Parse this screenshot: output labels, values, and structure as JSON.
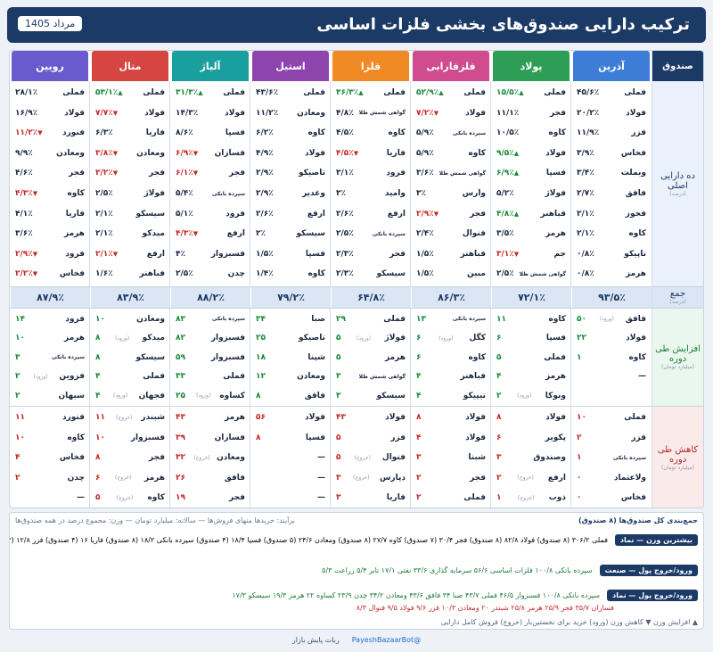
{
  "header": {
    "title": "ترکیب دارایی صندوق‌های بخشی فلزات اساسی",
    "date": "مرداد 1405"
  },
  "row_labels": {
    "fund": "صندوق",
    "main": "ده دارایی اصلی",
    "main_sub": "(درصد)",
    "total": "جمع",
    "total_sub": "(درصد)",
    "inc": "افزایش طی دوره",
    "inc_sub": "(میلیارد تومان)",
    "dec": "کاهش طی دوره",
    "dec_sub": "(میلیارد تومان)"
  },
  "funds": [
    {
      "name": "آذرین",
      "color": "#3d7dd8",
      "total": "۹۳/۵٪",
      "top": [
        [
          "فملی",
          "۴۵/۶٪",
          ""
        ],
        [
          "فولاد",
          "۲۰/۲٪",
          ""
        ],
        [
          "فزر",
          "۱۱/۹٪",
          ""
        ],
        [
          "فخاس",
          "۳/۹٪",
          ""
        ],
        [
          "وبملت",
          "۳/۴٪",
          ""
        ],
        [
          "فافق",
          "۲/۷٪",
          ""
        ],
        [
          "فخوز",
          "۲/۱٪",
          ""
        ],
        [
          "کاوه",
          "۲/۱٪",
          ""
        ],
        [
          "تاپیکو",
          "۰/۸٪",
          ""
        ],
        [
          "هرمز",
          "۰/۸٪",
          ""
        ]
      ],
      "inc": [
        [
          "فافق",
          "۵۰",
          "(ورود)"
        ],
        [
          "فولاد",
          "۲۲",
          ""
        ],
        [
          "کاوه",
          "۱",
          ""
        ],
        [
          "—",
          "",
          ""
        ]
      ],
      "dec": [
        [
          "فملی",
          "۱۰",
          ""
        ],
        [
          "فزر",
          "۲",
          ""
        ],
        [
          "سپرده بانکی",
          "۱",
          ""
        ],
        [
          "ولاعتماد",
          "۰",
          ""
        ],
        [
          "فخاس",
          "۰",
          ""
        ]
      ]
    },
    {
      "name": "پولاد",
      "color": "#2e9e57",
      "total": "۷۲/۱٪",
      "top": [
        [
          "فملی",
          "۱۵/۵٪",
          "up"
        ],
        [
          "فجر",
          "۱۱/۱٪",
          ""
        ],
        [
          "کاوه",
          "۱۰/۵٪",
          ""
        ],
        [
          "فولاد",
          "۹/۵٪",
          "up"
        ],
        [
          "فسپا",
          "۶/۹٪",
          "up"
        ],
        [
          "فولاژ",
          "۵/۲٪",
          ""
        ],
        [
          "فباهنر",
          "۴/۸٪",
          "up"
        ],
        [
          "هرمز",
          "۳/۵٪",
          ""
        ],
        [
          "جم",
          "۳/۱٪",
          "dn"
        ],
        [
          "گواهی شمش طلا",
          "۲/۵٪",
          ""
        ]
      ],
      "inc": [
        [
          "کاوه",
          "۱۱",
          ""
        ],
        [
          "فسپا",
          "۶",
          ""
        ],
        [
          "فملی",
          "۵",
          ""
        ],
        [
          "هرمز",
          "۴",
          ""
        ],
        [
          "ونوکا",
          "۲",
          "(ورود)"
        ]
      ],
      "dec": [
        [
          "فولاد",
          "۸",
          ""
        ],
        [
          "پکویر",
          "۶",
          ""
        ],
        [
          "وصندوق",
          "۳",
          ""
        ],
        [
          "ارفع",
          "۲",
          "(خروج)"
        ],
        [
          "ذوب",
          "۱",
          "(خروج)"
        ]
      ]
    },
    {
      "name": "فلزفارابی",
      "color": "#d14b8f",
      "total": "۸۶/۳٪",
      "top": [
        [
          "فملی",
          "۵۲/۹٪",
          "up"
        ],
        [
          "فولاد",
          "۷/۲٪",
          "dn"
        ],
        [
          "سپرده بانکی",
          "۵/۹٪",
          ""
        ],
        [
          "کاوه",
          "۵/۹٪",
          ""
        ],
        [
          "گواهی شمش طلا",
          "۳/۶٪",
          ""
        ],
        [
          "وارس",
          "۳٪",
          ""
        ],
        [
          "فجر",
          "۲/۹٪",
          "dn"
        ],
        [
          "فنوال",
          "۲/۴٪",
          ""
        ],
        [
          "فباهنر",
          "۱/۵٪",
          ""
        ],
        [
          "مبین",
          "۱/۵٪",
          ""
        ]
      ],
      "inc": [
        [
          "سپرده بانکی",
          "۱۳",
          ""
        ],
        [
          "کگل",
          "۶",
          "(ورود)"
        ],
        [
          "کاوه",
          "۶",
          ""
        ],
        [
          "فباهنر",
          "۴",
          ""
        ],
        [
          "تیپیکو",
          "۴",
          ""
        ]
      ],
      "dec": [
        [
          "فولاد",
          "۸",
          ""
        ],
        [
          "فولاد",
          "۴",
          ""
        ],
        [
          "شبنا",
          "۳",
          ""
        ],
        [
          "فجر",
          "۲",
          ""
        ],
        [
          "فملی",
          "۲",
          ""
        ]
      ]
    },
    {
      "name": "فلزا",
      "color": "#ef8a24",
      "total": "۶۴/۸٪",
      "top": [
        [
          "فملی",
          "۳۶/۳٪",
          "up"
        ],
        [
          "گواهی شمش طلا",
          "۴/۸٪",
          ""
        ],
        [
          "کاوه",
          "۴/۵٪",
          ""
        ],
        [
          "فاریا",
          "۴/۵٪",
          "dn"
        ],
        [
          "فرود",
          "۳/۱٪",
          ""
        ],
        [
          "وامید",
          "۳٪",
          ""
        ],
        [
          "ارفع",
          "۲/۶٪",
          ""
        ],
        [
          "سپرده بانکی",
          "۲/۵٪",
          ""
        ],
        [
          "فجر",
          "۲/۳٪",
          ""
        ],
        [
          "سیسکو",
          "۲/۳٪",
          ""
        ]
      ],
      "inc": [
        [
          "فملی",
          "۲۹",
          ""
        ],
        [
          "فولاژ",
          "۵",
          "(ورود)"
        ],
        [
          "هرمز",
          "۵",
          ""
        ],
        [
          "گواهی شمش طلا",
          "۳",
          ""
        ],
        [
          "سیسکو",
          "۳",
          ""
        ]
      ],
      "dec": [
        [
          "فولاد",
          "۴۳",
          ""
        ],
        [
          "فزر",
          "۵",
          ""
        ],
        [
          "فنوال",
          "۵",
          "(خروج)"
        ],
        [
          "دپارس",
          "۳",
          "(خروج)"
        ],
        [
          "فاریا",
          "۳",
          ""
        ]
      ]
    },
    {
      "name": "استیل",
      "color": "#8e44ad",
      "total": "۷۹/۲٪",
      "top": [
        [
          "فملی",
          "۴۳/۶٪",
          ""
        ],
        [
          "ومعادن",
          "۱۱/۲٪",
          ""
        ],
        [
          "کاوه",
          "۶/۲٪",
          ""
        ],
        [
          "فولاد",
          "۴/۹٪",
          ""
        ],
        [
          "تاصیکو",
          "۲/۹٪",
          ""
        ],
        [
          "وغدیر",
          "۲/۹٪",
          ""
        ],
        [
          "ارفع",
          "۲/۶٪",
          ""
        ],
        [
          "سیسکو",
          "۲٪",
          ""
        ],
        [
          "فسپا",
          "۱/۵٪",
          ""
        ],
        [
          "کاوه",
          "۱/۴٪",
          ""
        ]
      ],
      "inc": [
        [
          "صبا",
          "۳۴",
          ""
        ],
        [
          "تاصیکو",
          "۲۵",
          ""
        ],
        [
          "شپنا",
          "۱۸",
          ""
        ],
        [
          "ومعادن",
          "۱۲",
          ""
        ],
        [
          "فافق",
          "۸",
          ""
        ]
      ],
      "dec": [
        [
          "فولاد",
          "۵۶",
          ""
        ],
        [
          "فسپا",
          "۸",
          ""
        ],
        [
          "—",
          "",
          ""
        ],
        [
          "—",
          "",
          ""
        ],
        [
          "—",
          "",
          ""
        ]
      ]
    },
    {
      "name": "آلیاژ",
      "color": "#1a9e9e",
      "total": "۸۸/۲٪",
      "top": [
        [
          "فملی",
          "۳۱/۳٪",
          "up"
        ],
        [
          "فولاد",
          "۱۴/۳٪",
          ""
        ],
        [
          "فسپا",
          "۸/۶٪",
          ""
        ],
        [
          "فسازان",
          "۶/۹٪",
          "dn"
        ],
        [
          "فجر",
          "۶/۱٪",
          "dn"
        ],
        [
          "سپرده بانکی",
          "۵/۴٪",
          ""
        ],
        [
          "فرود",
          "۵/۱٪",
          ""
        ],
        [
          "ارفع",
          "۴/۳٪",
          "dn"
        ],
        [
          "فسبزوار",
          "۴٪",
          ""
        ],
        [
          "چدن",
          "۲/۵٪",
          ""
        ]
      ],
      "inc": [
        [
          "سپرده بانکی",
          "۸۳",
          ""
        ],
        [
          "فسبزوار",
          "۸۲",
          ""
        ],
        [
          "فسبزوار",
          "۵۹",
          ""
        ],
        [
          "فملی",
          "۳۳",
          ""
        ],
        [
          "کساوه",
          "۲۵",
          "(ورود)"
        ]
      ],
      "dec": [
        [
          "هرمز",
          "۴۳",
          ""
        ],
        [
          "فسازان",
          "۳۹",
          ""
        ],
        [
          "ومعادن",
          "۳۲",
          "(خروج)"
        ],
        [
          "فافق",
          "۲۶",
          ""
        ],
        [
          "فجر",
          "۱۹",
          ""
        ]
      ]
    },
    {
      "name": "متال",
      "color": "#d64541",
      "total": "۸۳/۹٪",
      "top": [
        [
          "فملی",
          "۵۳/۱٪",
          "up"
        ],
        [
          "فولاد",
          "۷/۷٪",
          "dn"
        ],
        [
          "فاریا",
          "۶/۳٪",
          ""
        ],
        [
          "ومعادن",
          "۳/۸٪",
          "dn"
        ],
        [
          "فجر",
          "۳/۲٪",
          "dn"
        ],
        [
          "فولاژ",
          "۲/۵٪",
          ""
        ],
        [
          "سیسکو",
          "۲/۱٪",
          ""
        ],
        [
          "میدکو",
          "۲/۱٪",
          ""
        ],
        [
          "ارفع",
          "۲/۱٪",
          "dn"
        ],
        [
          "فباهنر",
          "۱/۶٪",
          ""
        ]
      ],
      "inc": [
        [
          "ومعادن",
          "۱۰",
          ""
        ],
        [
          "میدکو",
          "۸",
          "(ورود)"
        ],
        [
          "سیسکو",
          "۸",
          ""
        ],
        [
          "فملی",
          "۴",
          ""
        ],
        [
          "فجهان",
          "۴",
          "(ورود)"
        ]
      ],
      "dec": [
        [
          "شبندر",
          "۱۱",
          "(خروج)"
        ],
        [
          "فسبزوار",
          "۱۰",
          ""
        ],
        [
          "فجر",
          "۸",
          ""
        ],
        [
          "هرمز",
          "۶",
          "(خروج)"
        ],
        [
          "کاوه",
          "۵",
          "(خروج)"
        ]
      ]
    },
    {
      "name": "رویین",
      "color": "#6a5acd",
      "total": "۸۷/۹٪",
      "top": [
        [
          "فملی",
          "۲۸/۱٪",
          ""
        ],
        [
          "فولاد",
          "۱۶/۹٪",
          ""
        ],
        [
          "فنورد",
          "۱۱/۲٪",
          "dn"
        ],
        [
          "ومعادن",
          "۹/۹٪",
          ""
        ],
        [
          "فجر",
          "۴/۶٪",
          ""
        ],
        [
          "کاوه",
          "۴/۳٪",
          "dn"
        ],
        [
          "فاریا",
          "۴/۱٪",
          ""
        ],
        [
          "هرمز",
          "۳/۶٪",
          ""
        ],
        [
          "فرود",
          "۲/۹٪",
          "dn"
        ],
        [
          "فخاس",
          "۲/۲٪",
          "dn"
        ]
      ],
      "inc": [
        [
          "فرود",
          "۱۴",
          ""
        ],
        [
          "هرمز",
          "۱۰",
          ""
        ],
        [
          "سپرده بانکی",
          "۳",
          ""
        ],
        [
          "فزوین",
          "۲",
          "(ورود)"
        ],
        [
          "سبهان",
          "۲",
          ""
        ]
      ],
      "dec": [
        [
          "فنورد",
          "۱۱",
          ""
        ],
        [
          "کاوه",
          "۱۰",
          ""
        ],
        [
          "فخاس",
          "۴",
          ""
        ],
        [
          "چدن",
          "۲",
          ""
        ],
        [
          "—",
          "",
          ""
        ]
      ]
    }
  ],
  "footer": {
    "title": "جمع‌بندی کل صندوق‌ها (۸ صندوق)",
    "note": "برآیند: خریدها منهای فروش‌ها — سالانه: میلیارد تومان — وزن: مجموع درصد در همه صندوق‌ها",
    "line1_label": "بیشترین وزن — نماد",
    "line1": "فملی ۳۰۶/۲ (۸ صندوق)   فولاد ۸۲/۸ (۸ صندوق)   فجر ۳۰/۴ (۷ صندوق)   کاوه ۲۷/۷ (۸ صندوق)   ومعادن ۲۴/۶ (۵ صندوق)   فسپا ۱۸/۴ (۴ صندوق)   سپرده بانکی ۱۸/۲ (۸ صندوق)   فاریا ۱۶ (۴ صندوق)   فزر ۱۲/۸ (۳ صندوق)",
    "line2_label": "ورود/خروج پول — صنعت",
    "line2": "سپرده بانکی ۱۰۰/۸   فلزات اساسی ۵۶/۶   سرمایه گذاری ۳۳/۶   نفتی ۱۷/۱   تابر ۵/۴   زراعت ۵/۳",
    "line3_label": "ورود/خروج پول — نماد",
    "line3a": "سپرده بانکی ۱۰۰/۸   فسبزوار ۴۶/۵   فملی ۴۳/۷   صبا ۳۴   فافق ۴۳/۶   ومعادن ۳۴/۲   چدن ۲۳/۹   کساوه ۲۲   هرمز ۱۹/۳   سیسکو ۱۷/۳",
    "line3b": "فسازان ۳۵/۷   فجر ۲۵/۹   هرمز ۲۵/۸   شبندر ۲۰   ومعادن ۱۰/۳   فزر ۹/۶   فولاد ۹/۵   فنوال ۸/۳",
    "legend": "▲ افزایش وزن   ▼ کاهش وزن   (ورود) خرید برای نخستین‌بار   (خروج) فروش کامل دارایی"
  },
  "bottom": {
    "brand": "@PayeshBazaarBot",
    "name": "ربات پایش بازار"
  }
}
